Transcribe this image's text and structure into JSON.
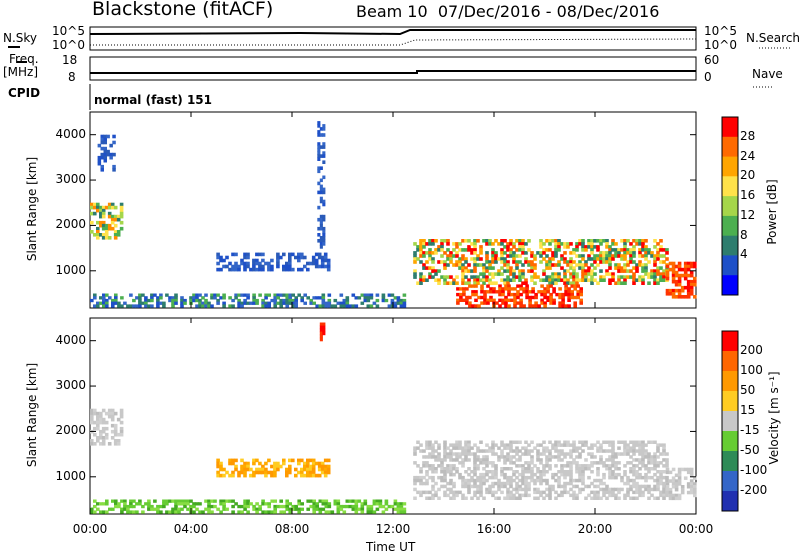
{
  "header": {
    "title": "Blackstone (fitACF)",
    "beam_info": "Beam 10  07/Dec/2016 - 08/Dec/2016"
  },
  "panels": {
    "noise": {
      "left_label": "N.Sky",
      "right_label": "N.Search",
      "left_ticks": [
        "10^5",
        "10^0"
      ],
      "right_ticks": [
        "10^5",
        "10^0"
      ]
    },
    "freq": {
      "left_label_1": "Freq.",
      "left_label_2": "[MHz]",
      "right_label": "Nave",
      "left_ticks": [
        "18",
        "8"
      ],
      "right_ticks": [
        "60",
        "0"
      ]
    },
    "cpid": {
      "label": "CPID",
      "value": "normal (fast) 151"
    }
  },
  "colorbars": {
    "power": {
      "label": "Power [dB]",
      "ticks": [
        "28",
        "24",
        "20",
        "16",
        "12",
        "8",
        "4"
      ],
      "colors": [
        "#0000ff",
        "#1e50c8",
        "#2e7d6e",
        "#4caf50",
        "#a5d64a",
        "#ffe24a",
        "#ffa500",
        "#ff6a00",
        "#ff0000"
      ]
    },
    "velocity": {
      "label": "Velocity [m s⁻¹]",
      "ticks": [
        "200",
        "100",
        "50",
        "15",
        "-15",
        "-50",
        "-100",
        "-200"
      ],
      "colors": [
        "#2030b0",
        "#3466c8",
        "#2e8b57",
        "#66cc33",
        "#c8c8c8",
        "#ffcc22",
        "#ff9900",
        "#ff6600",
        "#ff0000"
      ]
    }
  },
  "chart_data": {
    "type": "heatmap",
    "xlabel": "Time UT",
    "ylabel": "Slant Range [km]",
    "x_ticks": [
      "00:00",
      "04:00",
      "08:00",
      "12:00",
      "16:00",
      "20:00",
      "00:00"
    ],
    "y_ticks": [
      "1000",
      "2000",
      "3000",
      "4000"
    ],
    "xlim_hours": [
      0,
      24
    ],
    "ylim_km": [
      180,
      4500
    ],
    "power_regions": [
      {
        "t": [
          0.0,
          1.3
        ],
        "r": [
          1700,
          2500
        ],
        "level": "green-yellow"
      },
      {
        "t": [
          0.3,
          1.0
        ],
        "r": [
          3200,
          4000
        ],
        "level": "blue"
      },
      {
        "t": [
          5.0,
          9.5
        ],
        "r": [
          1000,
          1400
        ],
        "level": "blue"
      },
      {
        "t": [
          0.0,
          12.5
        ],
        "r": [
          200,
          500
        ],
        "level": "blue-green"
      },
      {
        "t": [
          12.8,
          22.9
        ],
        "r": [
          700,
          1700
        ],
        "level": "red-orange band"
      },
      {
        "t": [
          14.5,
          19.5
        ],
        "r": [
          200,
          700
        ],
        "level": "red"
      },
      {
        "t": [
          22.8,
          24.0
        ],
        "r": [
          400,
          1200
        ],
        "level": "red"
      },
      {
        "t": [
          9.0,
          9.3
        ],
        "r": [
          1500,
          4300
        ],
        "level": "blue"
      }
    ],
    "velocity_regions": [
      {
        "t": [
          0.0,
          1.3
        ],
        "r": [
          1700,
          2500
        ],
        "level": "grey"
      },
      {
        "t": [
          5.0,
          9.5
        ],
        "r": [
          1000,
          1400
        ],
        "level": "orange"
      },
      {
        "t": [
          0.0,
          12.5
        ],
        "r": [
          200,
          500
        ],
        "level": "green"
      },
      {
        "t": [
          12.8,
          22.9
        ],
        "r": [
          500,
          1800
        ],
        "level": "grey"
      },
      {
        "t": [
          22.8,
          24.0
        ],
        "r": [
          500,
          1200
        ],
        "level": "grey"
      },
      {
        "t": [
          9.1,
          9.3
        ],
        "r": [
          4000,
          4400
        ],
        "level": "red"
      }
    ],
    "freq_mhz": [
      {
        "t": [
          0,
          13
        ],
        "v": 10.6
      },
      {
        "t": [
          13,
          24
        ],
        "v": 11.6
      }
    ],
    "nave": [
      {
        "t": [
          0,
          24
        ],
        "v": 22
      }
    ]
  }
}
